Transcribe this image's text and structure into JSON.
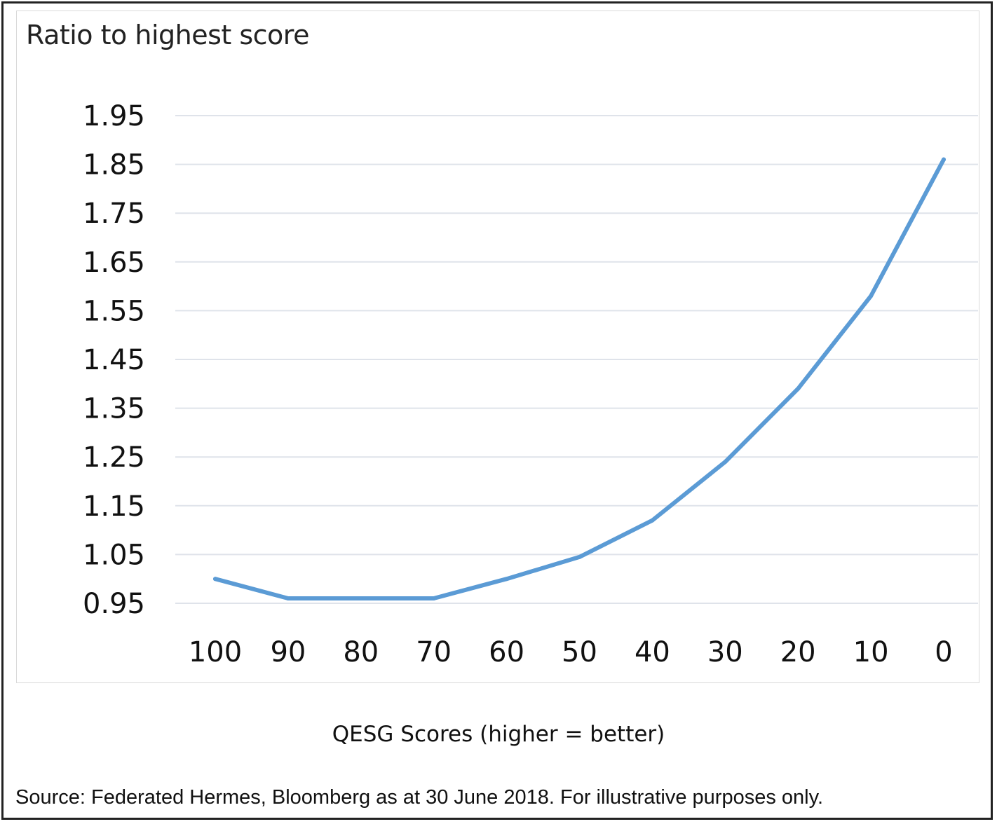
{
  "chart_data": {
    "type": "line",
    "title": "Ratio to highest score",
    "xlabel": "QESG Scores (higher = better)",
    "ylabel": "",
    "categories": [
      "100",
      "90",
      "80",
      "70",
      "60",
      "50",
      "40",
      "30",
      "20",
      "10",
      "0"
    ],
    "y_ticks": [
      "1.95",
      "1.85",
      "1.75",
      "1.65",
      "1.55",
      "1.45",
      "1.35",
      "1.25",
      "1.15",
      "1.05",
      "0.95"
    ],
    "ylim": [
      0.95,
      1.95
    ],
    "grid": true,
    "legend": "none",
    "series": [
      {
        "values": [
          1.0,
          0.96,
          0.96,
          0.96,
          1.0,
          1.045,
          1.12,
          1.24,
          1.39,
          1.58,
          1.86
        ]
      }
    ],
    "colors": {
      "line": "#5b9bd5",
      "grid": "#dfe3ea",
      "frame": "#222222"
    }
  },
  "source_note": "Source: Federated Hermes, Bloomberg as at 30 June 2018. For illustrative purposes only."
}
